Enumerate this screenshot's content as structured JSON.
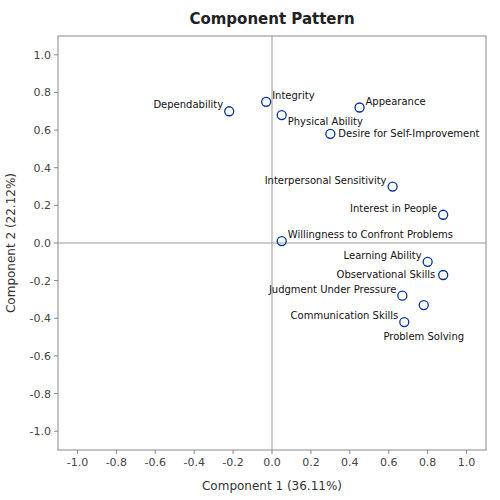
{
  "chart_data": {
    "type": "scatter",
    "title": "Component Pattern",
    "xlabel": "Component 1 (36.11%)",
    "ylabel": "Component 2 (22.12%)",
    "x": [
      -0.03,
      -0.22,
      0.05,
      0.45,
      0.3,
      0.62,
      0.88,
      0.05,
      0.8,
      0.88,
      0.67,
      0.78,
      0.68
    ],
    "values": [
      0.75,
      0.7,
      0.68,
      0.72,
      0.58,
      0.3,
      0.15,
      0.01,
      -0.1,
      -0.17,
      -0.28,
      -0.33,
      -0.42
    ],
    "labels": [
      "Integrity",
      "Dependability",
      "Physical Ability",
      "Appearance",
      "Desire for Self-Improvement",
      "Interpersonal Sensitivity",
      "Interest in People",
      "Willingness to Confront Problems",
      "Learning Ability",
      "Observational Skills",
      "Judgment Under Pressure",
      "Problem Solving",
      "Communication Skills"
    ],
    "xlim": [
      -1.1,
      1.1
    ],
    "ylim": [
      -1.1,
      1.1
    ],
    "xticks": [
      {
        "value": -1.0,
        "label": "-1.0"
      },
      -0.8,
      -0.6,
      -0.4,
      -0.2,
      {
        "value": 0.0,
        "label": "0.0"
      },
      0.2,
      0.4,
      0.6,
      0.8,
      {
        "value": 1.0,
        "label": "1.0"
      }
    ],
    "yticks": [
      {
        "value": -1.0,
        "label": "-1.0"
      },
      -0.8,
      -0.6,
      -0.4,
      -0.2,
      {
        "value": 0.0,
        "label": "0.0"
      },
      0.2,
      0.4,
      0.6,
      0.8,
      {
        "value": 1.0,
        "label": "1.0"
      }
    ],
    "color": "#003399",
    "marker": "circle",
    "grid": false
  }
}
